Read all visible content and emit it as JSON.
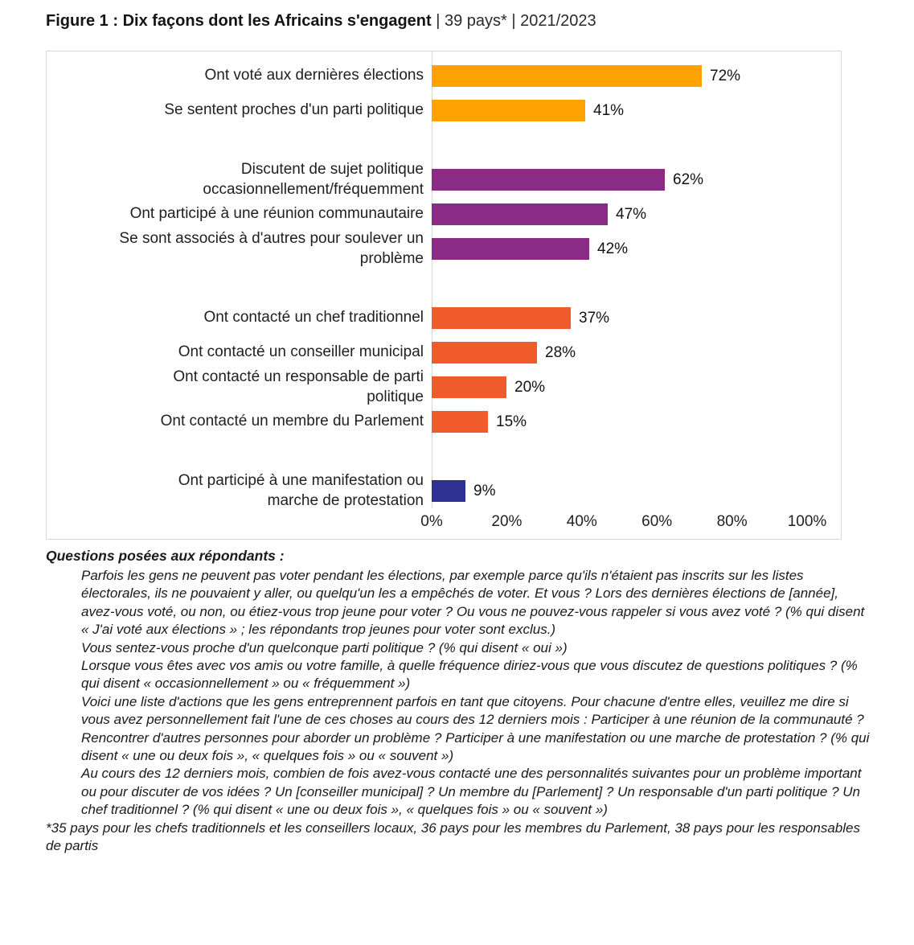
{
  "figure_title": {
    "bold": "Figure 1 : Dix façons dont les Africains s'engagent",
    "rest": " | 39 pays* | 2021/2023"
  },
  "chart_data": {
    "type": "bar",
    "orientation": "horizontal",
    "title": "Figure 1 : Dix façons dont les Africains s'engagent | 39 pays* | 2021/2023",
    "xlabel": "",
    "ylabel": "",
    "xlim": [
      0,
      100
    ],
    "grid": false,
    "legend": false,
    "x_ticks": [
      {
        "value": 0,
        "label": "0%"
      },
      {
        "value": 20,
        "label": "20%"
      },
      {
        "value": 40,
        "label": "40%"
      },
      {
        "value": 60,
        "label": "60%"
      },
      {
        "value": 80,
        "label": "80%"
      },
      {
        "value": 100,
        "label": "100%"
      }
    ],
    "colors": {
      "voting": "#FFA303",
      "discussion": "#8A2B85",
      "contact": "#F05B2C",
      "protest": "#2E3192"
    },
    "bars": [
      {
        "label": "Ont voté aux dernières élections",
        "value": 72,
        "display": "72%",
        "color": "#FFA303",
        "group": "voting",
        "spacer_after": false
      },
      {
        "label": "Se sentent proches d'un parti politique",
        "value": 41,
        "display": "41%",
        "color": "#FFA303",
        "group": "voting",
        "spacer_after": true
      },
      {
        "label": "Discutent de sujet politique\noccasionnellement/fréquemment",
        "value": 62,
        "display": "62%",
        "color": "#8A2B85",
        "group": "discussion",
        "spacer_after": false
      },
      {
        "label": "Ont participé à une réunion communautaire",
        "value": 47,
        "display": "47%",
        "color": "#8A2B85",
        "group": "discussion",
        "spacer_after": false
      },
      {
        "label": "Se sont associés à d'autres pour soulever un\nproblème",
        "value": 42,
        "display": "42%",
        "color": "#8A2B85",
        "group": "discussion",
        "spacer_after": true
      },
      {
        "label": "Ont contacté un chef traditionnel",
        "value": 37,
        "display": "37%",
        "color": "#F05B2C",
        "group": "contact",
        "spacer_after": false
      },
      {
        "label": "Ont contacté un conseiller municipal",
        "value": 28,
        "display": "28%",
        "color": "#F05B2C",
        "group": "contact",
        "spacer_after": false
      },
      {
        "label": "Ont contacté un responsable de parti\npolitique",
        "value": 20,
        "display": "20%",
        "color": "#F05B2C",
        "group": "contact",
        "spacer_after": false
      },
      {
        "label": "Ont contacté un membre du Parlement",
        "value": 15,
        "display": "15%",
        "color": "#F05B2C",
        "group": "contact",
        "spacer_after": true
      },
      {
        "label": "Ont participé à une manifestation ou\nmarche de protestation",
        "value": 9,
        "display": "9%",
        "color": "#2E3192",
        "group": "protest",
        "spacer_after": false
      }
    ]
  },
  "notes": {
    "header": "Questions posées aux répondants :",
    "questions": [
      "Parfois les gens ne peuvent pas voter pendant les élections, par exemple parce qu'ils n'étaient pas inscrits sur les listes électorales, ils ne pouvaient y aller, ou quelqu'un les a empêchés de voter. Et vous ? Lors des dernières élections de [année], avez-vous voté, ou non, ou étiez-vous trop jeune pour voter ? Ou vous ne pouvez-vous rappeler si vous avez voté ? (% qui disent « J'ai voté aux élections » ; les répondants trop jeunes pour voter sont exclus.)",
      "Vous sentez-vous proche d'un quelconque parti politique ? (% qui disent « oui »)",
      "Lorsque vous êtes avec vos amis ou votre famille, à quelle fréquence diriez-vous que vous discutez de questions politiques ? (% qui disent « occasionnellement » ou « fréquemment »)",
      "Voici une liste d'actions que les gens entreprennent parfois en tant que citoyens. Pour chacune d'entre elles, veuillez me dire si vous avez personnellement fait l'une de ces choses au cours des 12 derniers mois : Participer à une réunion de la communauté ? Rencontrer d'autres personnes pour aborder un problème ? Participer à une manifestation ou une marche de protestation ? (% qui disent « une ou deux fois », « quelques fois » ou « souvent »)",
      "Au cours des 12 derniers mois, combien de fois avez-vous contacté une des personnalités suivantes pour un problème important ou pour discuter de vos idées ? Un [conseiller municipal] ? Un membre du [Parlement] ? Un responsable d'un parti politique ? Un chef traditionnel ? (% qui disent « une ou deux fois », « quelques fois » ou « souvent »)"
    ],
    "footnote": "*35 pays pour les chefs traditionnels et les conseillers locaux, 36 pays pour les membres du Parlement, 38 pays pour les responsables de partis"
  }
}
